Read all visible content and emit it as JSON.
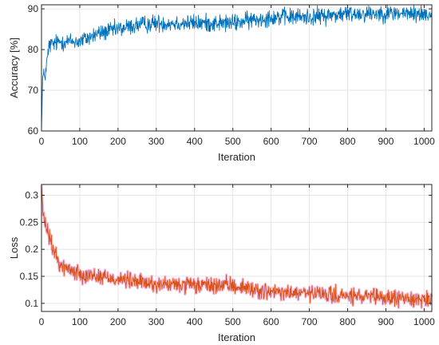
{
  "chart_data": [
    {
      "type": "line",
      "title": "",
      "xlabel": "Iteration",
      "ylabel": "Accuracy [%]",
      "xlim": [
        0,
        1020
      ],
      "ylim": [
        60,
        91
      ],
      "xticks": [
        0,
        100,
        200,
        300,
        400,
        500,
        600,
        700,
        800,
        900,
        1000
      ],
      "yticks": [
        60,
        70,
        80,
        90
      ],
      "grid": true,
      "legend": "none",
      "series": [
        {
          "color": "#0072BD",
          "noise": 3.2,
          "trend": [
            [
              0,
              60
            ],
            [
              3,
              73
            ],
            [
              10,
              74
            ],
            [
              20,
              81
            ],
            [
              50,
              82
            ],
            [
              100,
              82
            ],
            [
              150,
              84
            ],
            [
              200,
              85
            ],
            [
              250,
              86
            ],
            [
              300,
              86.5
            ],
            [
              400,
              86.5
            ],
            [
              500,
              86.5
            ],
            [
              600,
              88
            ],
            [
              700,
              88
            ],
            [
              800,
              88.8
            ],
            [
              900,
              89
            ],
            [
              1000,
              88.7
            ],
            [
              1020,
              88.7
            ]
          ]
        }
      ]
    },
    {
      "type": "line",
      "title": "",
      "xlabel": "Iteration",
      "ylabel": "Loss",
      "xlim": [
        0,
        1020
      ],
      "ylim": [
        0.085,
        0.32
      ],
      "xticks": [
        0,
        100,
        200,
        300,
        400,
        500,
        600,
        700,
        800,
        900,
        1000
      ],
      "yticks": [
        0.1,
        0.15,
        0.2,
        0.25,
        0.3
      ],
      "grid": true,
      "legend": "none",
      "series": [
        {
          "color": "#D95319",
          "glow": "#F08CC8",
          "noise": 0.022,
          "trend": [
            [
              0,
              0.32
            ],
            [
              4,
              0.26
            ],
            [
              15,
              0.235
            ],
            [
              30,
              0.2
            ],
            [
              50,
              0.17
            ],
            [
              100,
              0.155
            ],
            [
              200,
              0.145
            ],
            [
              300,
              0.135
            ],
            [
              400,
              0.133
            ],
            [
              500,
              0.133
            ],
            [
              600,
              0.12
            ],
            [
              700,
              0.118
            ],
            [
              800,
              0.113
            ],
            [
              900,
              0.11
            ],
            [
              1000,
              0.108
            ],
            [
              1020,
              0.108
            ]
          ]
        }
      ]
    }
  ]
}
